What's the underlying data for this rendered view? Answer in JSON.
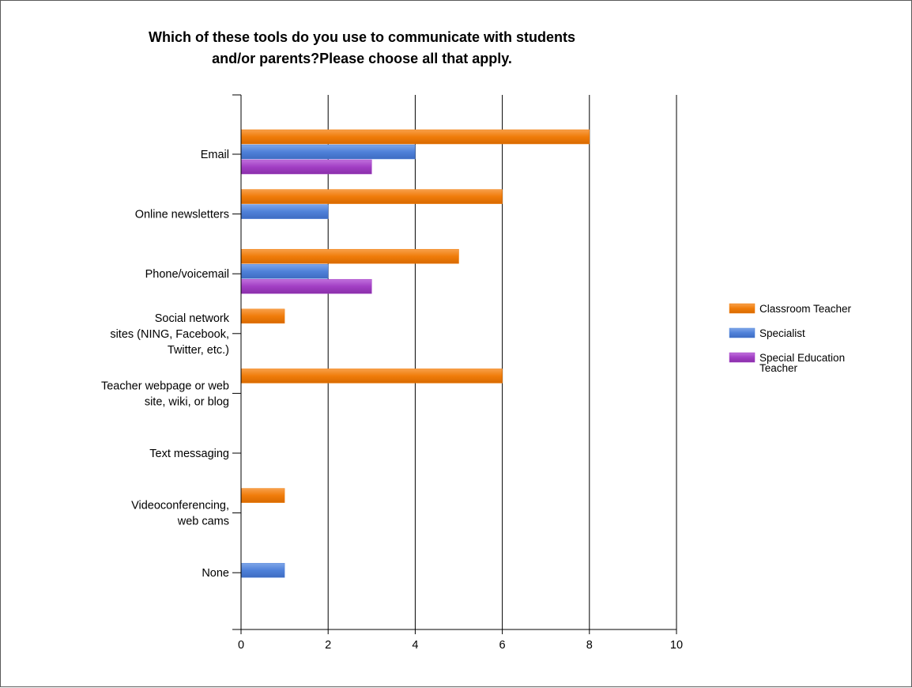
{
  "chart_data": {
    "type": "bar",
    "orientation": "horizontal",
    "title": "Which of these tools do you use to communicate with students and/or parents?Please choose all that apply.",
    "title_lines": [
      "Which of these tools do you use to communicate with students",
      "and/or parents?Please choose all that apply."
    ],
    "categories": [
      "Email",
      "Online newsletters",
      "Phone/voicemail",
      "Social network sites (NING, Facebook, Twitter, etc.)",
      "Teacher webpage or web site, wiki, or blog",
      "Text messaging",
      "Videoconferencing, web cams",
      "None"
    ],
    "category_label_lines": [
      [
        "Email"
      ],
      [
        "Online newsletters"
      ],
      [
        "Phone/voicemail"
      ],
      [
        "Social network",
        "sites (NING, Facebook,",
        "Twitter, etc.)"
      ],
      [
        "Teacher webpage or web",
        "site, wiki, or blog"
      ],
      [
        "Text messaging"
      ],
      [
        "Videoconferencing,",
        "web cams"
      ],
      [
        "None"
      ]
    ],
    "series": [
      {
        "name": "Classroom Teacher",
        "color": "#F07C0A",
        "values": [
          8,
          6,
          5,
          1,
          6,
          0,
          1,
          0
        ]
      },
      {
        "name": "Specialist",
        "color": "#4F81D9",
        "values": [
          4,
          2,
          2,
          0,
          0,
          0,
          0,
          1
        ]
      },
      {
        "name": "Special Education Teacher",
        "color": "#A23FC4",
        "values": [
          3,
          0,
          3,
          0,
          0,
          0,
          0,
          0
        ]
      }
    ],
    "legend_label_lines": [
      [
        "Classroom Teacher"
      ],
      [
        "Specialist"
      ],
      [
        "Special Education",
        "Teacher"
      ]
    ],
    "xlim": [
      0,
      10
    ],
    "x_ticks": [
      0,
      2,
      4,
      6,
      8,
      10
    ],
    "xlabel": "",
    "ylabel": "",
    "grid": true,
    "legend_position": "right"
  }
}
